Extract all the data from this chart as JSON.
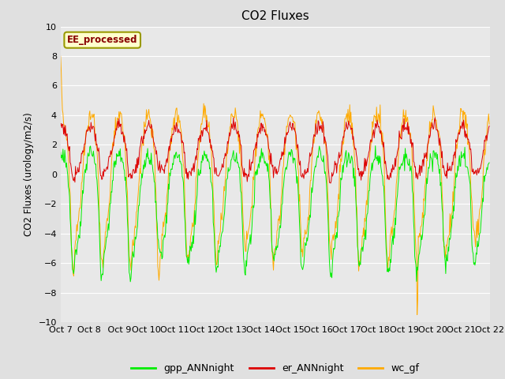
{
  "title": "CO2 Fluxes",
  "ylabel": "CO2 Fluxes (urology/m2/s)",
  "ylim": [
    -10,
    10
  ],
  "yticks": [
    -10,
    -8,
    -6,
    -4,
    -2,
    0,
    2,
    4,
    6,
    8,
    10
  ],
  "fig_bg_color": "#e0e0e0",
  "plot_bg_color": "#e8e8e8",
  "grid_color": "#ffffff",
  "annotation_text": "EE_processed",
  "annotation_bg": "#ffffcc",
  "annotation_edge": "#999900",
  "annotation_text_color": "#880000",
  "colors": {
    "gpp_ANNnight": "#00ee00",
    "er_ANNnight": "#dd0000",
    "wc_gf": "#ffaa00"
  },
  "tick_labels": [
    "Oct 7",
    "Oct 8",
    " Oct 9",
    "Oct 10",
    "Oct 11",
    "Oct 12",
    "Oct 13",
    "Oct 14",
    "Oct 15",
    "Oct 16",
    "Oct 17",
    "Oct 18",
    "Oct 19",
    "Oct 20",
    "Oct 21",
    "Oct 22"
  ]
}
